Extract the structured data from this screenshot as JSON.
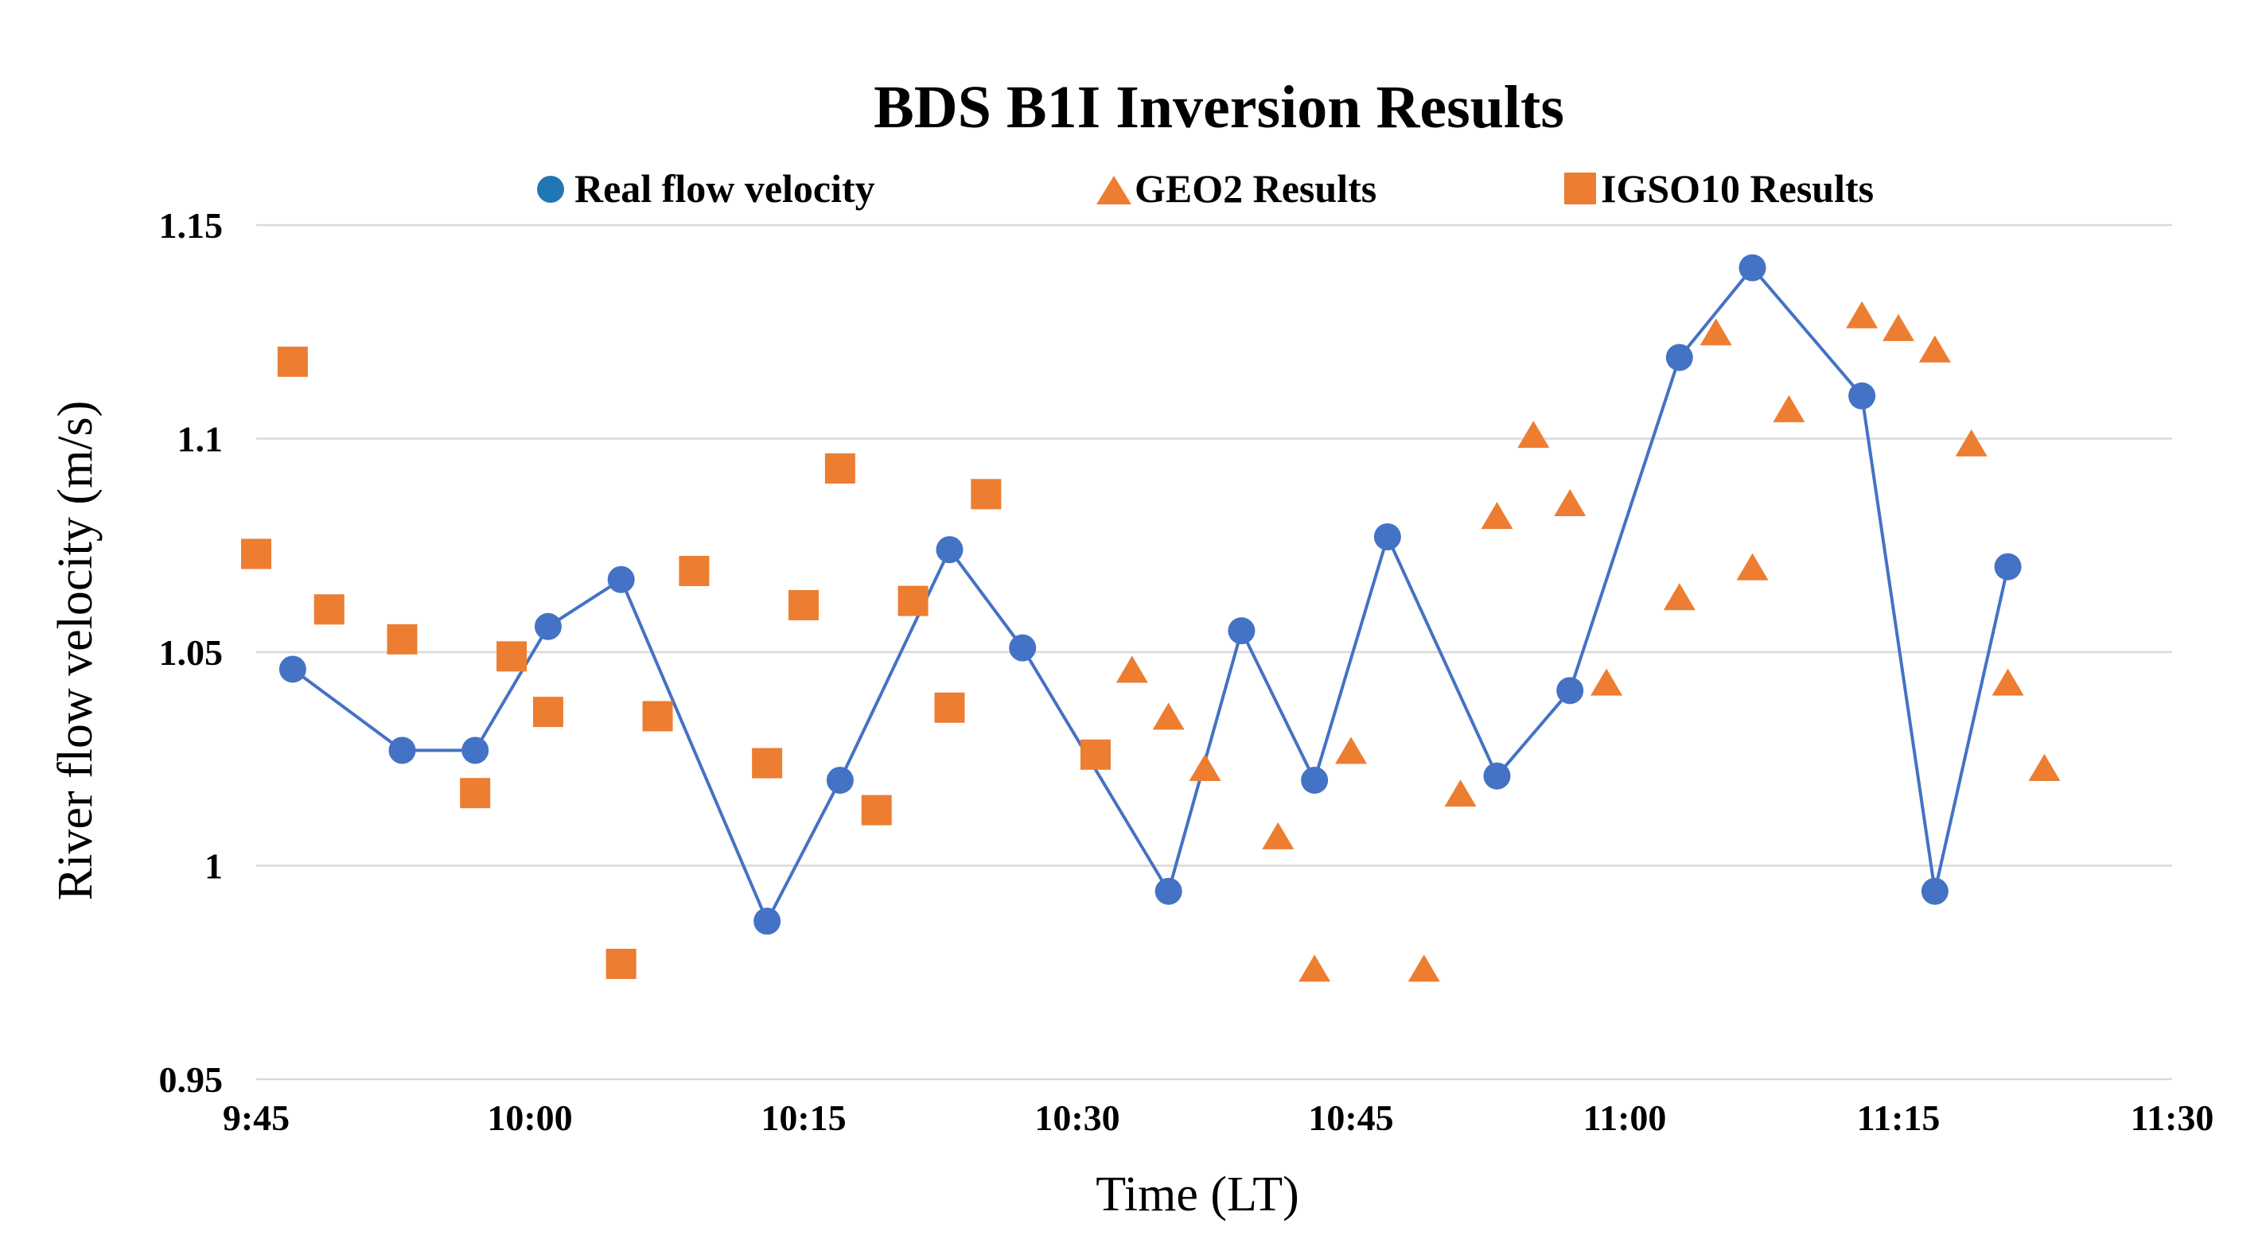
{
  "chart_data": {
    "type": "scatter",
    "title": "BDS B1I Inversion Results",
    "xlabel": "Time (LT)",
    "ylabel": "River flow velocity (m/s)",
    "xlim_minutes": [
      585,
      690
    ],
    "ylim": [
      0.95,
      1.15
    ],
    "x_ticks": [
      {
        "value": 585,
        "label": "9:45"
      },
      {
        "value": 600,
        "label": "10:00"
      },
      {
        "value": 615,
        "label": "10:15"
      },
      {
        "value": 630,
        "label": "10:30"
      },
      {
        "value": 645,
        "label": "10:45"
      },
      {
        "value": 660,
        "label": "11:00"
      },
      {
        "value": 675,
        "label": "11:15"
      },
      {
        "value": 690,
        "label": "11:30"
      }
    ],
    "y_ticks": [
      {
        "value": 0.95,
        "label": "0.95"
      },
      {
        "value": 1.0,
        "label": "1"
      },
      {
        "value": 1.05,
        "label": "1.05"
      },
      {
        "value": 1.1,
        "label": "1.1"
      },
      {
        "value": 1.15,
        "label": "1.15"
      }
    ],
    "grid": true,
    "legend_position": "top",
    "series": [
      {
        "name": "Real flow velocity",
        "marker": "circle",
        "line": true,
        "color": "#4472C4",
        "x": [
          587,
          593,
          597,
          601,
          605,
          613,
          617,
          623,
          627,
          635,
          639,
          643,
          647,
          653,
          657,
          663,
          667,
          673,
          677,
          681
        ],
        "y": [
          1.046,
          1.027,
          1.027,
          1.056,
          1.067,
          0.987,
          1.02,
          1.074,
          1.051,
          0.994,
          1.055,
          1.02,
          1.077,
          1.021,
          1.041,
          1.119,
          1.14,
          1.11,
          0.994,
          1.07
        ]
      },
      {
        "name": "GEO2 Results",
        "marker": "triangle",
        "line": false,
        "color": "#ED7D31",
        "x": [
          633,
          635,
          637,
          641,
          643,
          645,
          649,
          651,
          653,
          655,
          657,
          659,
          663,
          665,
          667,
          669,
          673,
          675,
          677,
          679,
          681,
          683
        ],
        "y": [
          1.046,
          1.035,
          1.023,
          1.007,
          0.976,
          1.027,
          0.976,
          1.017,
          1.082,
          1.101,
          1.085,
          1.043,
          1.063,
          1.125,
          1.07,
          1.107,
          1.129,
          1.126,
          1.121,
          1.099,
          1.043,
          1.023
        ]
      },
      {
        "name": "IGSO10 Results",
        "marker": "square",
        "line": false,
        "color": "#ED7D31",
        "x": [
          585,
          587,
          589,
          593,
          597,
          599,
          601,
          605,
          607,
          609,
          613,
          615,
          617,
          619,
          621,
          623,
          625,
          631
        ],
        "y": [
          1.073,
          1.118,
          1.06,
          1.053,
          1.017,
          1.049,
          1.036,
          0.977,
          1.035,
          1.069,
          1.024,
          1.061,
          1.093,
          1.013,
          1.062,
          1.037,
          1.087,
          1.026
        ]
      }
    ]
  }
}
